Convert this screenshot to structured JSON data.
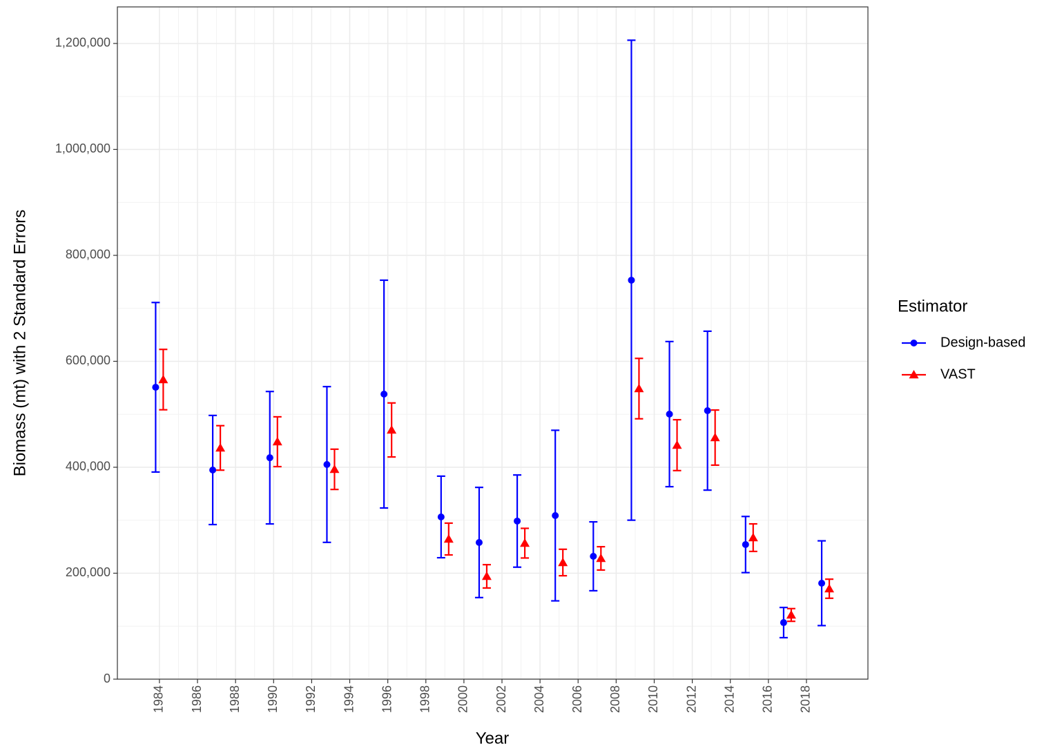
{
  "chart_data": {
    "type": "errorbar",
    "x_label": "Year",
    "y_label": "Biomass (mt) with 2 Standard Errors",
    "legend_title": "Estimator",
    "legend_position": "right",
    "grid": true,
    "x": [
      1984,
      1987,
      1990,
      1993,
      1996,
      1999,
      2001,
      2003,
      2005,
      2007,
      2009,
      2011,
      2013,
      2015,
      2017,
      2019
    ],
    "series": [
      {
        "name": "Design-based",
        "color": "#0000ff",
        "marker": "circle",
        "values": [
          551000,
          394800,
          418000,
          405200,
          538100,
          306200,
          258000,
          298400,
          308800,
          231900,
          753100,
          500300,
          506800,
          254100,
          106800,
          181100
        ],
        "errors": [
          160000,
          103000,
          125000,
          147000,
          215000,
          77000,
          104000,
          87000,
          161000,
          65000,
          453000,
          137000,
          150000,
          53000,
          28500,
          80000
        ]
      },
      {
        "name": "VAST",
        "color": "#ff0000",
        "marker": "triangle",
        "values": [
          565500,
          436500,
          448200,
          396100,
          470400,
          264500,
          194100,
          256700,
          220200,
          228000,
          548500,
          441700,
          456000,
          267100,
          121200,
          170700
        ],
        "errors": [
          57000,
          42000,
          47000,
          38000,
          51000,
          30000,
          22000,
          28000,
          25000,
          22000,
          57000,
          48000,
          52000,
          26000,
          12000,
          18000
        ]
      }
    ],
    "xlim": [
      1981.79,
      2021.23
    ],
    "xticks": [
      1984,
      1986,
      1988,
      1990,
      1992,
      1994,
      1996,
      1998,
      2000,
      2002,
      2004,
      2006,
      2008,
      2010,
      2012,
      2014,
      2016,
      2018
    ],
    "ylim": [
      0,
      1269000
    ],
    "yticks": [
      0,
      {
        "value": 200000,
        "label": "200,000"
      },
      {
        "value": 400000,
        "label": "400,000"
      },
      {
        "value": 600000,
        "label": "600,000"
      },
      {
        "value": 800000,
        "label": "800,000"
      },
      {
        "value": 1000000,
        "label": "1,000,000"
      },
      {
        "value": 1200000,
        "label": "1,200,000"
      }
    ]
  }
}
